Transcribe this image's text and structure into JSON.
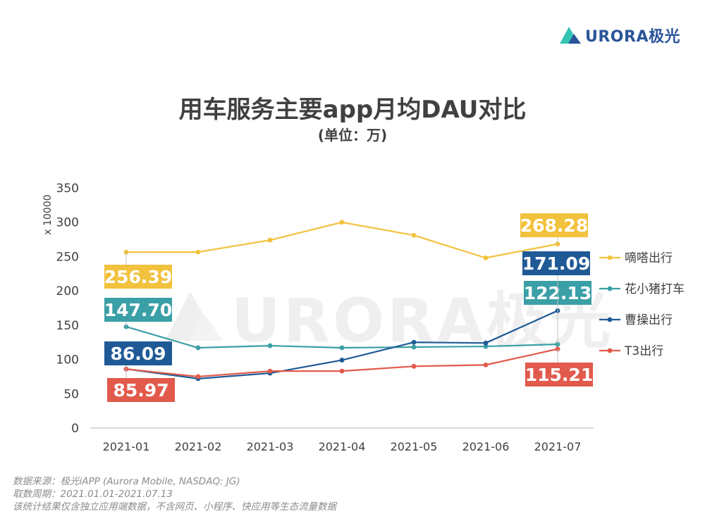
{
  "brand": {
    "logo_text": "URORA极光",
    "watermark_text": "URORA极光"
  },
  "chart_data": {
    "type": "line",
    "title": "用车服务主要app月均DAU对比",
    "subtitle": "(单位：万)",
    "ylabel": "x 10000",
    "ylim": [
      0,
      350
    ],
    "yticks": [
      "0",
      "50",
      "100",
      "150",
      "200",
      "250",
      "300",
      "350"
    ],
    "categories": [
      "2021-01",
      "2021-02",
      "2021-03",
      "2021-04",
      "2021-05",
      "2021-06",
      "2021-07"
    ],
    "grid": false,
    "legend_position": "right",
    "series": [
      {
        "name": "嘀嗒出行",
        "color": "#f2c23e",
        "values": [
          256.39,
          256.5,
          274,
          300,
          281,
          248,
          268.28
        ],
        "labels": [
          {
            "index": 0,
            "text": "256.39"
          },
          {
            "index": 6,
            "text": "268.28"
          }
        ]
      },
      {
        "name": "花小猪打车",
        "color": "#3a9fa6",
        "values": [
          147.7,
          117,
          120,
          117,
          118,
          119,
          122.13
        ],
        "labels": [
          {
            "index": 0,
            "text": "147.70"
          },
          {
            "index": 6,
            "text": "122.13"
          }
        ]
      },
      {
        "name": "曹操出行",
        "color": "#1f5a96",
        "values": [
          86.09,
          72,
          80,
          99,
          125,
          124,
          171.09
        ],
        "labels": [
          {
            "index": 0,
            "text": "86.09"
          },
          {
            "index": 6,
            "text": "171.09"
          }
        ]
      },
      {
        "name": "T3出行",
        "color": "#e25a4b",
        "values": [
          85.97,
          75,
          83,
          83,
          90,
          92,
          115.21
        ],
        "labels": [
          {
            "index": 0,
            "text": "85.97"
          },
          {
            "index": 6,
            "text": "115.21"
          }
        ]
      }
    ]
  },
  "footer": {
    "source": "数据来源：极光iAPP (Aurora Mobile, NASDAQ: JG)",
    "period": "取数周期：2021.01.01-2021.07.13",
    "note": "该统计结果仅含独立应用端数据，不含网页、小程序、快应用等生态流量数据"
  }
}
